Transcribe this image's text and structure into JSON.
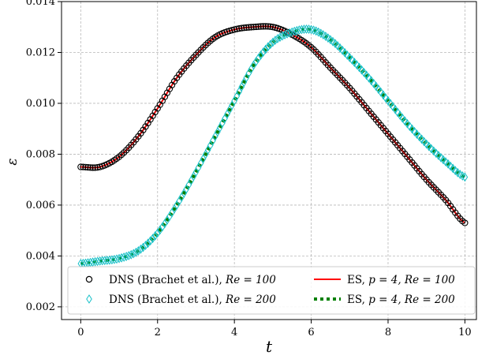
{
  "chart_data": {
    "type": "line",
    "xlabel": "t",
    "ylabel": "ε",
    "xlim": [
      -0.5,
      10.3
    ],
    "ylim": [
      0.0015,
      0.014
    ],
    "xticks": [
      0,
      2,
      4,
      6,
      8,
      10
    ],
    "yticks": [
      0.002,
      0.004,
      0.006,
      0.008,
      0.01,
      0.012,
      0.014
    ],
    "xtick_labels": [
      "0",
      "2",
      "4",
      "6",
      "8",
      "10"
    ],
    "ytick_labels": [
      "0.002",
      "0.004",
      "0.006",
      "0.008",
      "0.010",
      "0.012",
      "0.014"
    ],
    "grid": true,
    "legend_position": "bottom",
    "x": [
      0.0,
      0.5,
      1.0,
      1.5,
      2.0,
      2.5,
      3.0,
      3.5,
      4.0,
      4.5,
      5.0,
      5.5,
      6.0,
      6.5,
      7.0,
      7.5,
      8.0,
      8.5,
      9.0,
      9.5,
      10.0
    ],
    "series": [
      {
        "name": "DNS (Brachet et al.), ",
        "re_label": "Re = 100",
        "style": "circle-markers",
        "color": "#000000",
        "values": [
          0.0075,
          0.0075,
          0.0079,
          0.0087,
          0.0098,
          0.011,
          0.0119,
          0.0126,
          0.0129,
          0.013,
          0.013,
          0.0127,
          0.0122,
          0.0114,
          0.0106,
          0.0097,
          0.0088,
          0.0079,
          0.007,
          0.0062,
          0.0053
        ]
      },
      {
        "name": "DNS (Brachet et al.), ",
        "re_label": "Re = 200",
        "style": "diamond-markers",
        "color": "#16c0c8",
        "values": [
          0.0037,
          0.0038,
          0.0039,
          0.0042,
          0.0049,
          0.006,
          0.0073,
          0.0087,
          0.0101,
          0.0115,
          0.0124,
          0.0128,
          0.0129,
          0.0125,
          0.0118,
          0.011,
          0.0101,
          0.0092,
          0.0084,
          0.0077,
          0.0071
        ]
      },
      {
        "name": "ES, ",
        "re_label": "p = 4, Re = 100",
        "style": "solid-line",
        "color": "#ff0000",
        "values": [
          0.0075,
          0.0075,
          0.0079,
          0.0087,
          0.0098,
          0.011,
          0.0119,
          0.0126,
          0.0129,
          0.013,
          0.013,
          0.0127,
          0.0122,
          0.0114,
          0.0106,
          0.0097,
          0.0088,
          0.0079,
          0.007,
          0.0062,
          0.0053
        ]
      },
      {
        "name": "ES, ",
        "re_label": "p = 4, Re = 200",
        "style": "dotted-line",
        "color": "#008000",
        "values": [
          0.0037,
          0.0038,
          0.0039,
          0.0042,
          0.0049,
          0.006,
          0.0073,
          0.0087,
          0.0101,
          0.0115,
          0.0124,
          0.0128,
          0.0129,
          0.0125,
          0.0118,
          0.011,
          0.0101,
          0.0092,
          0.0084,
          0.0077,
          0.0071
        ]
      }
    ]
  }
}
